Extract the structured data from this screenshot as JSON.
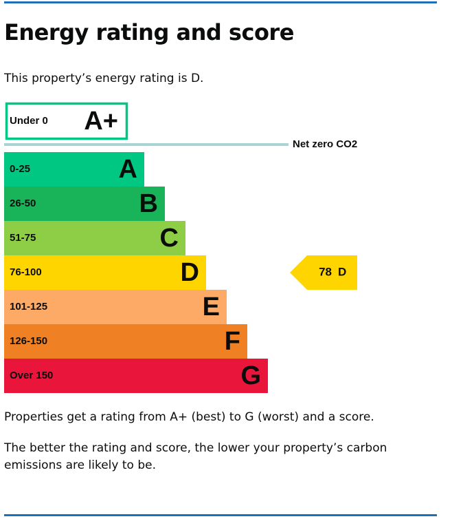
{
  "header": {
    "title": "Energy rating and score"
  },
  "intro": "This property’s energy rating is D.",
  "rating_chart": {
    "top_band": {
      "range": "Under 0",
      "letter": "A+",
      "color": "#00c781"
    },
    "net_zero_label": "Net zero CO2",
    "bands": [
      {
        "range": "0-25",
        "letter": "A",
        "color": "#00c781"
      },
      {
        "range": "26-50",
        "letter": "B",
        "color": "#19b459"
      },
      {
        "range": "51-75",
        "letter": "C",
        "color": "#8dce46"
      },
      {
        "range": "76-100",
        "letter": "D",
        "color": "#ffd500"
      },
      {
        "range": "101-125",
        "letter": "E",
        "color": "#fcaa65"
      },
      {
        "range": "126-150",
        "letter": "F",
        "color": "#ef8023"
      },
      {
        "range": "Over 150",
        "letter": "G",
        "color": "#e9153b"
      }
    ],
    "current": {
      "score": 78,
      "letter": "D",
      "band_index": 3
    }
  },
  "paragraphs": [
    "Properties get a rating from A+ (best) to G (worst) and a score.",
    "The better the rating and score, the lower your property’s carbon emissions are likely to be."
  ]
}
